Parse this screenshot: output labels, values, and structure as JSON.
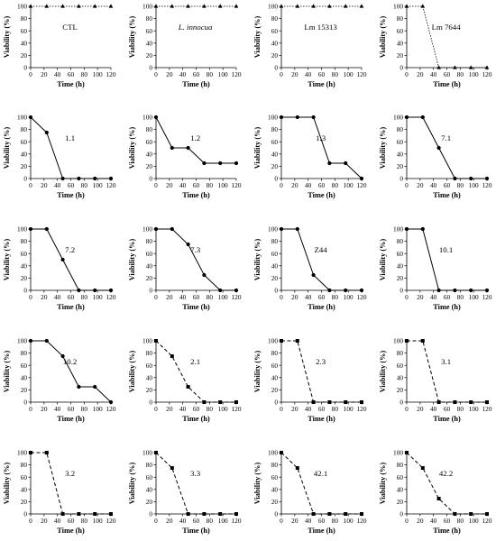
{
  "common": {
    "xlabel": "Time (h)",
    "ylabel": "Viability (%)",
    "xticks": [
      0,
      20,
      40,
      60,
      80,
      100,
      120
    ],
    "yticks": [
      0,
      20,
      40,
      60,
      80,
      100
    ],
    "xlim": [
      0,
      120
    ],
    "ylim": [
      0,
      100
    ]
  },
  "chart_data": [
    {
      "type": "line",
      "label": "CTL",
      "italic": false,
      "marker": "triangle",
      "line_style": "dotted",
      "x": [
        0,
        24,
        48,
        72,
        96,
        120
      ],
      "values": [
        100,
        100,
        100,
        100,
        100,
        100
      ]
    },
    {
      "type": "line",
      "label": "L. innocua",
      "italic": true,
      "marker": "triangle",
      "line_style": "dotted",
      "x": [
        0,
        24,
        48,
        72,
        96,
        120
      ],
      "values": [
        100,
        100,
        100,
        100,
        100,
        100
      ]
    },
    {
      "type": "line",
      "label": "Lm 15313",
      "italic": false,
      "marker": "triangle",
      "line_style": "dotted",
      "x": [
        0,
        24,
        48,
        72,
        96,
        120
      ],
      "values": [
        100,
        100,
        100,
        100,
        100,
        100
      ]
    },
    {
      "type": "line",
      "label": "Lm 7644",
      "italic": false,
      "marker": "triangle",
      "line_style": "dotted",
      "x": [
        0,
        24,
        48,
        72,
        96,
        120
      ],
      "values": [
        100,
        100,
        0,
        0,
        0,
        0
      ]
    },
    {
      "type": "line",
      "label": "1.1",
      "italic": false,
      "marker": "circle",
      "line_style": "solid",
      "x": [
        0,
        24,
        48,
        72,
        96,
        120
      ],
      "values": [
        100,
        75,
        0,
        0,
        0,
        0
      ]
    },
    {
      "type": "line",
      "label": "1.2",
      "italic": false,
      "marker": "circle",
      "line_style": "solid",
      "x": [
        0,
        24,
        48,
        72,
        96,
        120
      ],
      "values": [
        100,
        50,
        50,
        25,
        25,
        25
      ]
    },
    {
      "type": "line",
      "label": "1.3",
      "italic": false,
      "marker": "circle",
      "line_style": "solid",
      "x": [
        0,
        24,
        48,
        72,
        96,
        120
      ],
      "values": [
        100,
        100,
        100,
        25,
        25,
        0
      ]
    },
    {
      "type": "line",
      "label": "7.1",
      "italic": false,
      "marker": "circle",
      "line_style": "solid",
      "x": [
        0,
        24,
        48,
        72,
        96,
        120
      ],
      "values": [
        100,
        100,
        50,
        0,
        0,
        0
      ]
    },
    {
      "type": "line",
      "label": "7.2",
      "italic": false,
      "marker": "circle",
      "line_style": "solid",
      "x": [
        0,
        24,
        48,
        72,
        96,
        120
      ],
      "values": [
        100,
        100,
        50,
        0,
        0,
        0
      ]
    },
    {
      "type": "line",
      "label": "7.3",
      "italic": false,
      "marker": "circle",
      "line_style": "solid",
      "x": [
        0,
        24,
        48,
        72,
        96,
        120
      ],
      "values": [
        100,
        100,
        75,
        25,
        0,
        0
      ]
    },
    {
      "type": "line",
      "label": "Z44",
      "italic": false,
      "marker": "circle",
      "line_style": "solid",
      "x": [
        0,
        24,
        48,
        72,
        96,
        120
      ],
      "values": [
        100,
        100,
        25,
        0,
        0,
        0
      ]
    },
    {
      "type": "line",
      "label": "10.1",
      "italic": false,
      "marker": "circle",
      "line_style": "solid",
      "x": [
        0,
        24,
        48,
        72,
        96,
        120
      ],
      "values": [
        100,
        100,
        0,
        0,
        0,
        0
      ]
    },
    {
      "type": "line",
      "label": "10.2",
      "italic": false,
      "marker": "circle",
      "line_style": "solid",
      "x": [
        0,
        24,
        48,
        72,
        96,
        120
      ],
      "values": [
        100,
        100,
        75,
        25,
        25,
        0
      ]
    },
    {
      "type": "line",
      "label": "2.1",
      "italic": false,
      "marker": "square",
      "line_style": "dashed",
      "x": [
        0,
        24,
        48,
        72,
        96,
        120
      ],
      "values": [
        100,
        75,
        25,
        0,
        0,
        0
      ]
    },
    {
      "type": "line",
      "label": "2.3",
      "italic": false,
      "marker": "square",
      "line_style": "dashed",
      "x": [
        0,
        24,
        48,
        72,
        96,
        120
      ],
      "values": [
        100,
        100,
        0,
        0,
        0,
        0
      ]
    },
    {
      "type": "line",
      "label": "3.1",
      "italic": false,
      "marker": "square",
      "line_style": "dashed",
      "x": [
        0,
        24,
        48,
        72,
        96,
        120
      ],
      "values": [
        100,
        100,
        0,
        0,
        0,
        0
      ]
    },
    {
      "type": "line",
      "label": "3.2",
      "italic": false,
      "marker": "square",
      "line_style": "dashed",
      "x": [
        0,
        24,
        48,
        72,
        96,
        120
      ],
      "values": [
        100,
        100,
        0,
        0,
        0,
        0
      ]
    },
    {
      "type": "line",
      "label": "3.3",
      "italic": false,
      "marker": "square",
      "line_style": "dashed",
      "x": [
        0,
        24,
        48,
        72,
        96,
        120
      ],
      "values": [
        100,
        75,
        0,
        0,
        0,
        0
      ]
    },
    {
      "type": "line",
      "label": "42.1",
      "italic": false,
      "marker": "square",
      "line_style": "dashed",
      "x": [
        0,
        24,
        48,
        72,
        96,
        120
      ],
      "values": [
        100,
        75,
        0,
        0,
        0,
        0
      ]
    },
    {
      "type": "line",
      "label": "42.2",
      "italic": false,
      "marker": "square",
      "line_style": "dashed",
      "x": [
        0,
        24,
        48,
        72,
        96,
        120
      ],
      "values": [
        100,
        75,
        25,
        0,
        0,
        0
      ]
    }
  ]
}
